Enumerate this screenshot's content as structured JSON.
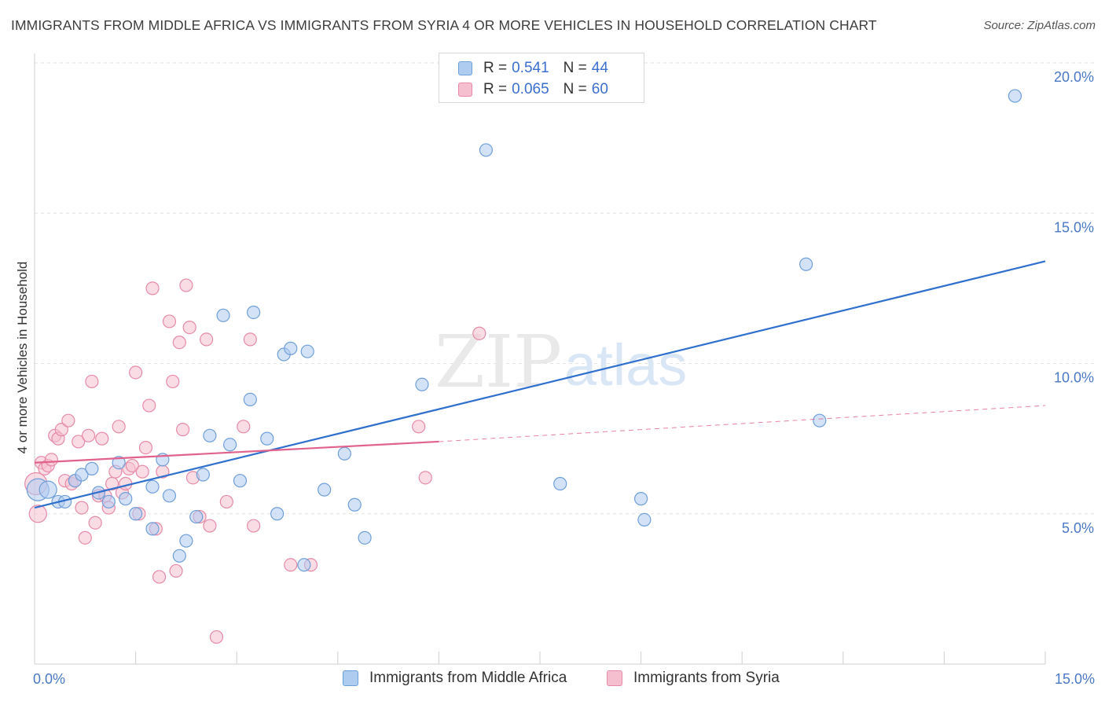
{
  "title": "IMMIGRANTS FROM MIDDLE AFRICA VS IMMIGRANTS FROM SYRIA 4 OR MORE VEHICLES IN HOUSEHOLD CORRELATION CHART",
  "source": "Source: ZipAtlas.com",
  "watermark": {
    "zip": "ZIP",
    "atlas": "atlas"
  },
  "legend": {
    "rows": [
      {
        "r_label": "R =",
        "r_value": "0.541",
        "n_label": "N =",
        "n_value": "44"
      },
      {
        "r_label": "R =",
        "r_value": "0.065",
        "n_label": "N =",
        "n_value": "60"
      }
    ]
  },
  "colors": {
    "blue_fill": "#aecbf0",
    "blue_stroke": "#6f9fd8",
    "blue_line": "#2f6fce",
    "pink_fill": "#f6bfd0",
    "pink_stroke": "#e68aa8",
    "pink_line": "#e0628d",
    "tick_text": "#4a78c4",
    "grid": "#e3e3e3"
  },
  "chart_data": {
    "type": "scatter",
    "title": "IMMIGRANTS FROM MIDDLE AFRICA VS IMMIGRANTS FROM SYRIA 4 OR MORE VEHICLES IN HOUSEHOLD CORRELATION CHART",
    "xlabel": "",
    "ylabel": "4 or more Vehicles in Household",
    "xlim": [
      0,
      15
    ],
    "ylim": [
      0,
      20
    ],
    "x_tick_labels": [
      {
        "value": 0,
        "label": "0.0%"
      },
      {
        "value": 15,
        "label": "15.0%"
      }
    ],
    "y_tick_labels": [
      {
        "value": 5,
        "label": "5.0%"
      },
      {
        "value": 10,
        "label": "10.0%"
      },
      {
        "value": 15,
        "label": "15.0%"
      },
      {
        "value": 20,
        "label": "20.0%"
      }
    ],
    "x_minor_ticks": [
      1.5,
      3,
      4.5,
      6,
      7.5,
      9,
      10.5,
      12,
      13.5,
      15
    ],
    "grid": true,
    "legend_position": "bottom",
    "series": [
      {
        "name": "Immigrants from Middle Africa",
        "color": "#6f9fd8",
        "r": 0.541,
        "n": 44,
        "trend": {
          "x": [
            0,
            15
          ],
          "y": [
            5.2,
            13.4
          ],
          "dashed_extension": false
        },
        "points": [
          {
            "x": 0.05,
            "y": 5.8,
            "s": "xl"
          },
          {
            "x": 0.2,
            "y": 5.8,
            "s": "l"
          },
          {
            "x": 0.35,
            "y": 5.4
          },
          {
            "x": 0.45,
            "y": 5.4
          },
          {
            "x": 0.6,
            "y": 6.1
          },
          {
            "x": 0.7,
            "y": 6.3
          },
          {
            "x": 0.85,
            "y": 6.5
          },
          {
            "x": 0.95,
            "y": 5.7
          },
          {
            "x": 1.1,
            "y": 5.4
          },
          {
            "x": 1.25,
            "y": 6.7
          },
          {
            "x": 1.35,
            "y": 5.5
          },
          {
            "x": 1.5,
            "y": 5.0
          },
          {
            "x": 1.75,
            "y": 5.9
          },
          {
            "x": 1.75,
            "y": 4.5
          },
          {
            "x": 1.9,
            "y": 6.8
          },
          {
            "x": 2.0,
            "y": 5.6
          },
          {
            "x": 2.15,
            "y": 3.6
          },
          {
            "x": 2.25,
            "y": 4.1
          },
          {
            "x": 2.4,
            "y": 4.9
          },
          {
            "x": 2.5,
            "y": 6.3
          },
          {
            "x": 2.6,
            "y": 7.6
          },
          {
            "x": 2.8,
            "y": 11.6
          },
          {
            "x": 2.9,
            "y": 7.3
          },
          {
            "x": 3.05,
            "y": 6.1
          },
          {
            "x": 3.2,
            "y": 8.8
          },
          {
            "x": 3.25,
            "y": 11.7
          },
          {
            "x": 3.45,
            "y": 7.5
          },
          {
            "x": 3.6,
            "y": 5.0
          },
          {
            "x": 3.7,
            "y": 10.3
          },
          {
            "x": 3.8,
            "y": 10.5
          },
          {
            "x": 4.0,
            "y": 3.3
          },
          {
            "x": 4.05,
            "y": 10.4
          },
          {
            "x": 4.3,
            "y": 5.8
          },
          {
            "x": 4.6,
            "y": 7.0
          },
          {
            "x": 4.75,
            "y": 5.3
          },
          {
            "x": 4.9,
            "y": 4.2
          },
          {
            "x": 5.75,
            "y": 9.3
          },
          {
            "x": 6.7,
            "y": 17.1
          },
          {
            "x": 7.8,
            "y": 6.0
          },
          {
            "x": 9.0,
            "y": 5.5
          },
          {
            "x": 9.05,
            "y": 4.8
          },
          {
            "x": 11.45,
            "y": 13.3
          },
          {
            "x": 11.65,
            "y": 8.1
          },
          {
            "x": 14.55,
            "y": 18.9
          }
        ]
      },
      {
        "name": "Immigrants from Syria",
        "color": "#e68aa8",
        "r": 0.065,
        "n": 60,
        "trend": {
          "x": [
            0,
            6
          ],
          "y": [
            6.7,
            7.4
          ],
          "dashed_extension": {
            "x": [
              6,
              15
            ],
            "y": [
              7.4,
              8.6
            ]
          }
        },
        "points": [
          {
            "x": 0.02,
            "y": 6.0,
            "s": "xl"
          },
          {
            "x": 0.05,
            "y": 5.0,
            "s": "l"
          },
          {
            "x": 0.1,
            "y": 6.7
          },
          {
            "x": 0.15,
            "y": 6.5
          },
          {
            "x": 0.2,
            "y": 6.6
          },
          {
            "x": 0.25,
            "y": 6.8
          },
          {
            "x": 0.3,
            "y": 7.6
          },
          {
            "x": 0.35,
            "y": 7.5
          },
          {
            "x": 0.4,
            "y": 7.8
          },
          {
            "x": 0.45,
            "y": 6.1
          },
          {
            "x": 0.5,
            "y": 8.1
          },
          {
            "x": 0.55,
            "y": 6.0
          },
          {
            "x": 0.6,
            "y": 6.1
          },
          {
            "x": 0.65,
            "y": 7.4
          },
          {
            "x": 0.7,
            "y": 5.2
          },
          {
            "x": 0.75,
            "y": 4.2
          },
          {
            "x": 0.8,
            "y": 7.6
          },
          {
            "x": 0.85,
            "y": 9.4
          },
          {
            "x": 0.9,
            "y": 4.7
          },
          {
            "x": 0.95,
            "y": 5.6
          },
          {
            "x": 1.0,
            "y": 7.5
          },
          {
            "x": 1.05,
            "y": 5.6
          },
          {
            "x": 1.1,
            "y": 5.2
          },
          {
            "x": 1.15,
            "y": 6.0
          },
          {
            "x": 1.2,
            "y": 6.4
          },
          {
            "x": 1.25,
            "y": 7.9
          },
          {
            "x": 1.3,
            "y": 5.7
          },
          {
            "x": 1.35,
            "y": 6.0
          },
          {
            "x": 1.4,
            "y": 6.5
          },
          {
            "x": 1.45,
            "y": 6.6
          },
          {
            "x": 1.5,
            "y": 9.7
          },
          {
            "x": 1.55,
            "y": 5.0
          },
          {
            "x": 1.6,
            "y": 6.4
          },
          {
            "x": 1.65,
            "y": 7.2
          },
          {
            "x": 1.7,
            "y": 8.6
          },
          {
            "x": 1.75,
            "y": 12.5
          },
          {
            "x": 1.8,
            "y": 4.5
          },
          {
            "x": 1.85,
            "y": 2.9
          },
          {
            "x": 1.9,
            "y": 6.4
          },
          {
            "x": 2.0,
            "y": 11.4
          },
          {
            "x": 2.05,
            "y": 9.4
          },
          {
            "x": 2.1,
            "y": 3.1
          },
          {
            "x": 2.15,
            "y": 10.7
          },
          {
            "x": 2.2,
            "y": 7.8
          },
          {
            "x": 2.25,
            "y": 12.6
          },
          {
            "x": 2.3,
            "y": 11.2
          },
          {
            "x": 2.35,
            "y": 6.2
          },
          {
            "x": 2.45,
            "y": 4.9
          },
          {
            "x": 2.55,
            "y": 10.8
          },
          {
            "x": 2.6,
            "y": 4.6
          },
          {
            "x": 2.7,
            "y": 0.9
          },
          {
            "x": 2.85,
            "y": 5.4
          },
          {
            "x": 3.1,
            "y": 7.9
          },
          {
            "x": 3.2,
            "y": 10.8
          },
          {
            "x": 3.25,
            "y": 4.6
          },
          {
            "x": 3.8,
            "y": 3.3
          },
          {
            "x": 4.1,
            "y": 3.3
          },
          {
            "x": 5.7,
            "y": 7.9
          },
          {
            "x": 5.8,
            "y": 6.2
          },
          {
            "x": 6.6,
            "y": 11.0
          }
        ]
      }
    ]
  }
}
